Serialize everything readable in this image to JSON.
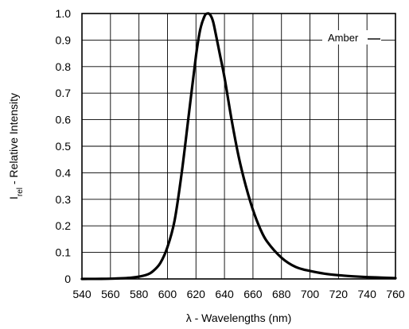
{
  "chart_data": {
    "type": "line",
    "title": "",
    "xlabel": {
      "prefix": "λ",
      "text": " - Wavelengths (nm)"
    },
    "ylabel": {
      "symbol": "I",
      "subscript": "rel",
      "text": " - Relative Intensity"
    },
    "xlim": [
      540,
      760
    ],
    "ylim": [
      0,
      1.0
    ],
    "x_ticks": [
      540,
      560,
      580,
      600,
      620,
      640,
      660,
      680,
      700,
      720,
      740,
      760
    ],
    "y_ticks": [
      0,
      0.1,
      0.2,
      0.3,
      0.4,
      0.5,
      0.6,
      0.7,
      0.8,
      0.9,
      1.0
    ],
    "y_tick_labels": [
      "0",
      "0.1",
      "0.2",
      "0.3",
      "0.4",
      "0.5",
      "0.6",
      "0.7",
      "0.8",
      "0.9",
      "1.0"
    ],
    "grid": true,
    "legend_position": "top-right",
    "series": [
      {
        "name": "Amber",
        "color": "#000000",
        "x": [
          540,
          560,
          575,
          585,
          590,
          595,
          600,
          605,
          610,
          615,
          620,
          623,
          626,
          628,
          630,
          632,
          634,
          637,
          640,
          645,
          650,
          655,
          660,
          665,
          670,
          680,
          690,
          700,
          710,
          720,
          730,
          740,
          750,
          760
        ],
        "y": [
          0.0,
          0.001,
          0.005,
          0.015,
          0.03,
          0.06,
          0.12,
          0.22,
          0.4,
          0.62,
          0.84,
          0.94,
          0.99,
          1.0,
          0.995,
          0.97,
          0.92,
          0.84,
          0.76,
          0.6,
          0.46,
          0.35,
          0.26,
          0.19,
          0.14,
          0.08,
          0.045,
          0.03,
          0.02,
          0.014,
          0.01,
          0.007,
          0.005,
          0.003
        ]
      }
    ]
  }
}
